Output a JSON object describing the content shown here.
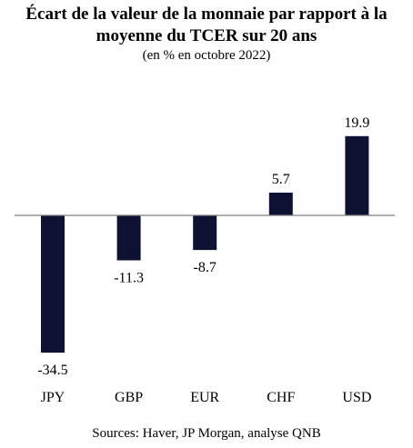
{
  "chart_data": {
    "type": "bar",
    "title_line1": "Écart de la valeur de la monnaie par rapport à la",
    "title_line2": "moyenne du TCER sur 20 ans",
    "subtitle": "(en % en octobre 2022)",
    "categories": [
      "JPY",
      "GBP",
      "EUR",
      "CHF",
      "USD"
    ],
    "values": [
      -34.5,
      -11.3,
      -8.7,
      5.7,
      19.9
    ],
    "value_labels": [
      "-34.5",
      "-11.3",
      "-8.7",
      "5.7",
      "19.9"
    ],
    "bar_color": "#0d1233",
    "axis_color": "#7f7f7f",
    "ylim": [
      -34.5,
      19.9
    ],
    "grid": false,
    "legend": "none"
  },
  "source": "Sources: Haver, JP Morgan, analyse QNB"
}
